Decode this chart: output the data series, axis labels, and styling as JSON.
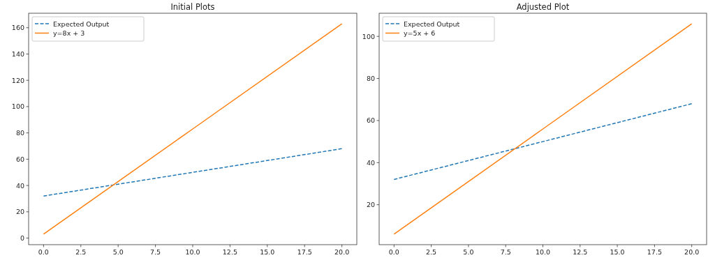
{
  "chart_data": [
    {
      "type": "line",
      "title": "Initial Plots",
      "x": [
        0,
        10,
        20
      ],
      "xlim": [
        -1,
        21
      ],
      "xticks": [
        {
          "value": 0,
          "label": "0.0"
        },
        {
          "value": 2.5,
          "label": "2.5"
        },
        {
          "value": 5,
          "label": "5.0"
        },
        {
          "value": 7.5,
          "label": "7.5"
        },
        {
          "value": 10,
          "label": "10.0"
        },
        {
          "value": 12.5,
          "label": "12.5"
        },
        {
          "value": 15,
          "label": "15.0"
        },
        {
          "value": 17.5,
          "label": "17.5"
        },
        {
          "value": 20,
          "label": "20.0"
        }
      ],
      "ylim": [
        -5,
        171
      ],
      "yticks": [
        0,
        20,
        40,
        60,
        80,
        100,
        120,
        140,
        160
      ],
      "legend": "top left",
      "grid": false,
      "series": [
        {
          "name": "Expected Output",
          "color": "#1f77b4",
          "line_style": "dashed",
          "values": [
            32,
            50,
            68
          ]
        },
        {
          "name": "y=8x + 3",
          "color": "#ff7f0e",
          "line_style": "solid",
          "values": [
            3,
            83,
            163
          ]
        }
      ]
    },
    {
      "type": "line",
      "title": "Adjusted Plot",
      "x": [
        0,
        10,
        20
      ],
      "xlim": [
        -1,
        21
      ],
      "xticks": [
        {
          "value": 0,
          "label": "0.0"
        },
        {
          "value": 2.5,
          "label": "2.5"
        },
        {
          "value": 5,
          "label": "5.0"
        },
        {
          "value": 7.5,
          "label": "7.5"
        },
        {
          "value": 10,
          "label": "10.0"
        },
        {
          "value": 12.5,
          "label": "12.5"
        },
        {
          "value": 15,
          "label": "15.0"
        },
        {
          "value": 17.5,
          "label": "17.5"
        },
        {
          "value": 20,
          "label": "20.0"
        }
      ],
      "ylim": [
        1,
        111
      ],
      "yticks": [
        20,
        40,
        60,
        80,
        100
      ],
      "legend": "top left",
      "grid": false,
      "series": [
        {
          "name": "Expected Output",
          "color": "#1f77b4",
          "line_style": "dashed",
          "values": [
            32,
            50,
            68
          ]
        },
        {
          "name": "y=5x + 6",
          "color": "#ff7f0e",
          "line_style": "solid",
          "values": [
            6,
            56,
            106
          ]
        }
      ]
    }
  ]
}
